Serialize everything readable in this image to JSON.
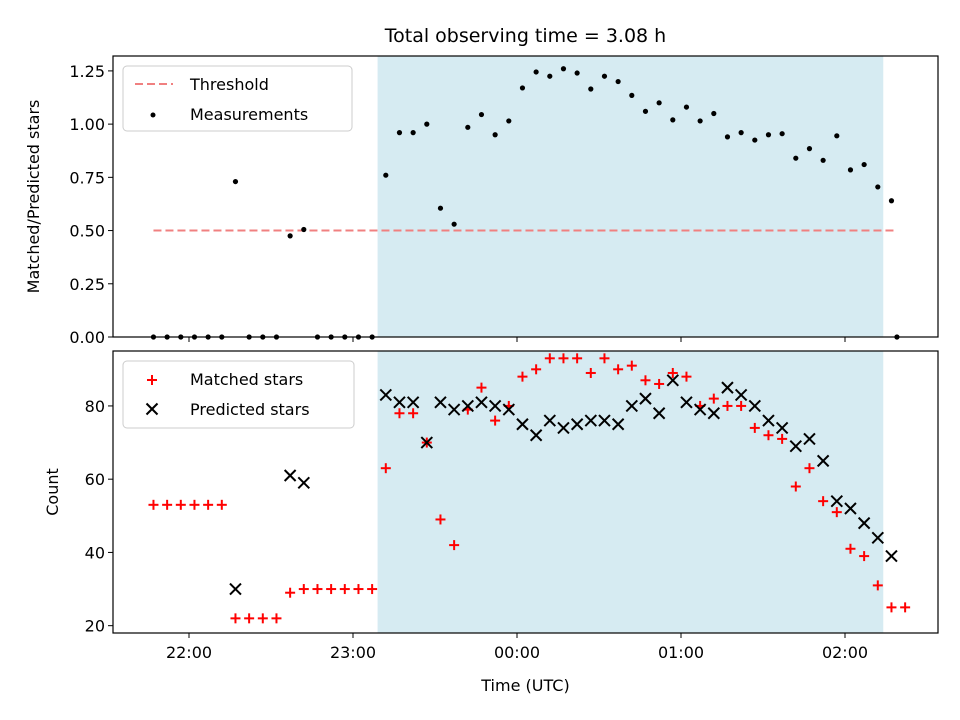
{
  "chart_data": [
    {
      "type": "scatter",
      "title": "Total observing time = 3.08 h",
      "ylabel": "Matched/Predicted stars",
      "xlabel": "",
      "ylim": [
        0,
        1.32
      ],
      "yticks": [
        "0.00",
        "0.25",
        "0.50",
        "0.75",
        "1.00",
        "1.25"
      ],
      "grid": false,
      "legend_position": "top-left",
      "shaded_interval": [
        "23:09",
        "02:14"
      ],
      "threshold": {
        "name": "Threshold",
        "value": 0.5,
        "x_range": [
          "21:47",
          "02:19"
        ],
        "color": "#f08080"
      },
      "series": [
        {
          "name": "Measurements",
          "color": "#000000",
          "marker": "dot",
          "x": [
            "21:47",
            "21:52",
            "21:57",
            "22:02",
            "22:07",
            "22:12",
            "22:17",
            "22:22",
            "22:27",
            "22:32",
            "22:37",
            "22:42",
            "22:47",
            "22:52",
            "22:57",
            "23:02",
            "23:07",
            "23:12",
            "23:17",
            "23:22",
            "23:27",
            "23:32",
            "23:37",
            "23:42",
            "23:47",
            "23:52",
            "23:57",
            "00:02",
            "00:07",
            "00:12",
            "00:17",
            "00:22",
            "00:27",
            "00:32",
            "00:37",
            "00:42",
            "00:47",
            "00:52",
            "00:57",
            "01:02",
            "01:07",
            "01:12",
            "01:17",
            "01:22",
            "01:27",
            "01:32",
            "01:37",
            "01:42",
            "01:47",
            "01:52",
            "01:57",
            "02:02",
            "02:07",
            "02:12",
            "02:17"
          ],
          "y": [
            0,
            0,
            0,
            0,
            0,
            0,
            0.73,
            0,
            0,
            0,
            0.475,
            0.505,
            0,
            0,
            0,
            0,
            0,
            0.76,
            0.96,
            0.96,
            1.0,
            0.605,
            0.53,
            0.985,
            1.045,
            0.95,
            1.015,
            1.17,
            1.245,
            1.225,
            1.26,
            1.24,
            1.165,
            1.225,
            1.2,
            1.135,
            1.06,
            1.1,
            1.02,
            1.08,
            1.015,
            1.05,
            0.94,
            0.96,
            0.925,
            0.95,
            0.955,
            0.84,
            0.885,
            0.83,
            0.945,
            0.785,
            0.81,
            0.705,
            0.64
          ]
        }
      ],
      "extra_points": {
        "x": [
          "02:19"
        ],
        "y": [
          0
        ]
      }
    },
    {
      "type": "scatter",
      "title": "",
      "ylabel": "Count",
      "xlabel": "Time (UTC)",
      "ylim": [
        18,
        95
      ],
      "yticks": [
        "20",
        "40",
        "60",
        "80"
      ],
      "xticks": [
        "22:00",
        "23:00",
        "00:00",
        "01:00",
        "02:00"
      ],
      "grid": false,
      "legend_position": "top-left",
      "shaded_interval": [
        "23:09",
        "02:14"
      ],
      "series": [
        {
          "name": "Matched stars",
          "color": "#ff0000",
          "marker": "plus",
          "x": [
            "21:47",
            "21:52",
            "21:57",
            "22:02",
            "22:07",
            "22:12",
            "22:17",
            "22:22",
            "22:27",
            "22:32",
            "22:37",
            "22:42",
            "22:47",
            "22:52",
            "22:57",
            "23:02",
            "23:07",
            "23:12",
            "23:17",
            "23:22",
            "23:27",
            "23:32",
            "23:37",
            "23:42",
            "23:47",
            "23:52",
            "23:57",
            "00:02",
            "00:07",
            "00:12",
            "00:17",
            "00:22",
            "00:27",
            "00:32",
            "00:37",
            "00:42",
            "00:47",
            "00:52",
            "00:57",
            "01:02",
            "01:07",
            "01:12",
            "01:17",
            "01:22",
            "01:27",
            "01:32",
            "01:37",
            "01:42",
            "01:47",
            "01:52",
            "01:57",
            "02:02",
            "02:07",
            "02:12",
            "02:17",
            "02:22"
          ],
          "y": [
            53,
            53,
            53,
            53,
            53,
            53,
            22,
            22,
            22,
            22,
            29,
            30,
            30,
            30,
            30,
            30,
            30,
            63,
            78,
            78,
            70,
            49,
            42,
            79,
            85,
            76,
            80,
            88,
            90,
            93,
            93,
            93,
            89,
            93,
            90,
            91,
            87,
            86,
            89,
            88,
            80,
            82,
            80,
            80,
            74,
            72,
            71,
            58,
            63,
            54,
            51,
            41,
            39,
            31,
            25,
            25
          ]
        },
        {
          "name": "Predicted stars",
          "color": "#000000",
          "marker": "x",
          "x": [
            "22:17",
            "22:37",
            "22:42",
            "23:12",
            "23:17",
            "23:22",
            "23:27",
            "23:32",
            "23:37",
            "23:42",
            "23:47",
            "23:52",
            "23:57",
            "00:02",
            "00:07",
            "00:12",
            "00:17",
            "00:22",
            "00:27",
            "00:32",
            "00:37",
            "00:42",
            "00:47",
            "00:52",
            "00:57",
            "01:02",
            "01:07",
            "01:12",
            "01:17",
            "01:22",
            "01:27",
            "01:32",
            "01:37",
            "01:42",
            "01:47",
            "01:52",
            "01:57",
            "02:02",
            "02:07",
            "02:12",
            "02:17"
          ],
          "y": [
            30,
            61,
            59,
            83,
            81,
            81,
            70,
            81,
            79,
            80,
            81,
            80,
            79,
            75,
            72,
            76,
            74,
            75,
            76,
            76,
            75,
            80,
            82,
            78,
            87,
            81,
            79,
            78,
            85,
            83,
            80,
            76,
            74,
            69,
            71,
            65,
            54,
            52,
            48,
            44,
            39
          ]
        }
      ]
    }
  ]
}
